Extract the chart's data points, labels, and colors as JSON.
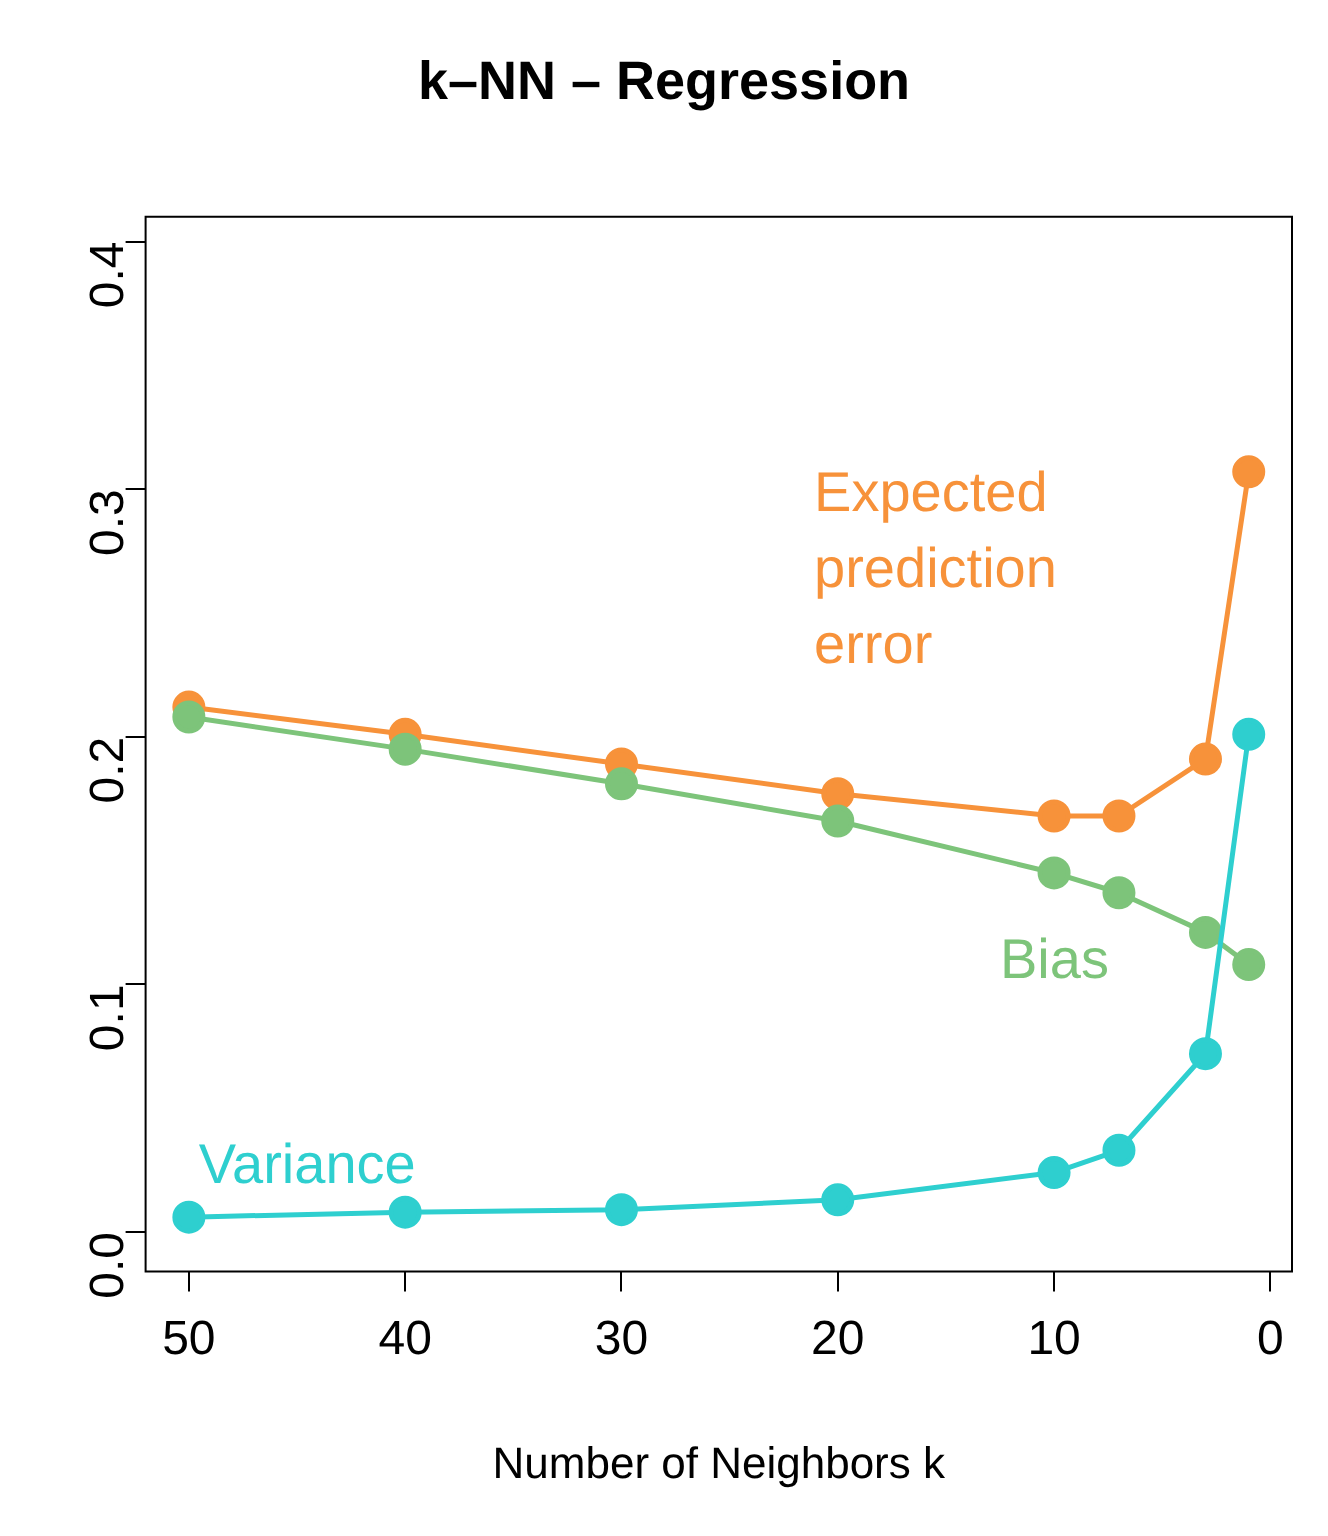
{
  "chart_data": {
    "type": "line",
    "title": "k–NN – Regression",
    "xlabel": "Number of Neighbors k",
    "x": [
      50,
      40,
      30,
      20,
      10,
      7,
      3,
      1
    ],
    "series": [
      {
        "name": "Expected prediction error",
        "color": "#f7923a",
        "values": [
          0.212,
          0.201,
          0.189,
          0.177,
          0.168,
          0.168,
          0.191,
          0.307
        ]
      },
      {
        "name": "Bias",
        "color": "#7dc47a",
        "values": [
          0.208,
          0.195,
          0.181,
          0.166,
          0.145,
          0.137,
          0.121,
          0.108
        ]
      },
      {
        "name": "Variance",
        "color": "#2ecfcf",
        "values": [
          0.006,
          0.008,
          0.009,
          0.013,
          0.024,
          0.033,
          0.072,
          0.201
        ]
      }
    ],
    "xlim": [
      52,
      -1
    ],
    "xticks": [
      50,
      40,
      30,
      20,
      10,
      0
    ],
    "ylim": [
      -0.016,
      0.41
    ],
    "yticks": [
      {
        "value": 0,
        "label": "0.0"
      },
      0.1,
      0.2,
      0.3,
      0.4
    ],
    "grid": false,
    "legend": false,
    "marker": "circle",
    "line_style": "solid"
  }
}
